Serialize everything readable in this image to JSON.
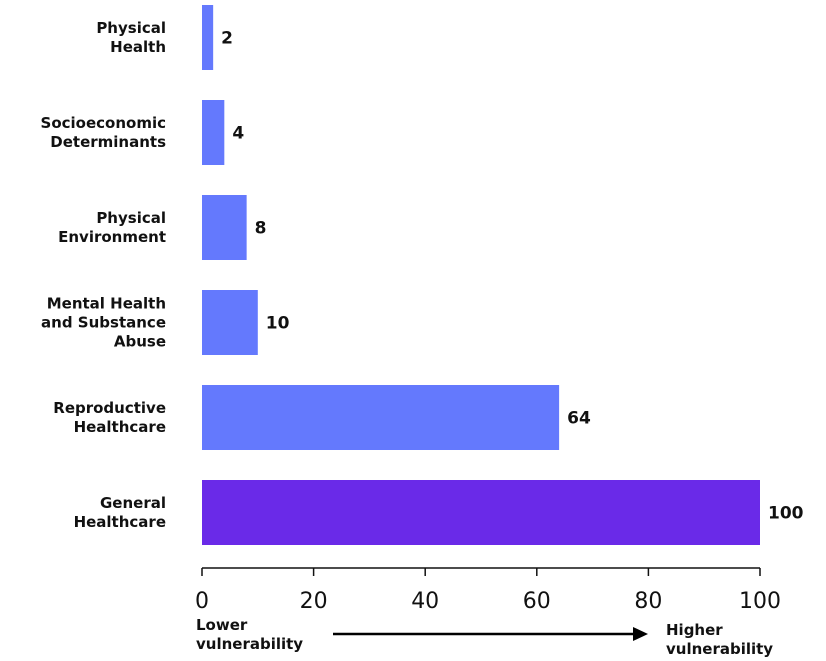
{
  "chart_data": {
    "type": "bar",
    "orientation": "horizontal",
    "categories": [
      [
        "Physical",
        "Health"
      ],
      [
        "Socioeconomic",
        "Determinants"
      ],
      [
        "Physical",
        "Environment"
      ],
      [
        "Mental Health",
        "and Substance",
        "Abuse"
      ],
      [
        "Reproductive",
        "Healthcare"
      ],
      [
        "General",
        "Healthcare"
      ]
    ],
    "values": [
      2,
      4,
      8,
      10,
      64,
      100
    ],
    "value_labels": [
      "2",
      "4",
      "8",
      "10",
      "64",
      "100"
    ],
    "bar_colors": [
      "#6479fd",
      "#6479fd",
      "#6479fd",
      "#6479fd",
      "#6479fd",
      "#6a2ae8"
    ],
    "xlim": [
      0,
      100
    ],
    "x_ticks": [
      0,
      20,
      40,
      60,
      80,
      100
    ],
    "x_tick_labels": [
      "0",
      "20",
      "40",
      "60",
      "80",
      "100"
    ],
    "grid": false,
    "legend": "none",
    "title": "",
    "xlabel": "",
    "ylabel": "",
    "direction_labels": {
      "low": [
        "Lower",
        "vulnerability"
      ],
      "high": [
        "Higher",
        "vulnerability"
      ]
    }
  }
}
